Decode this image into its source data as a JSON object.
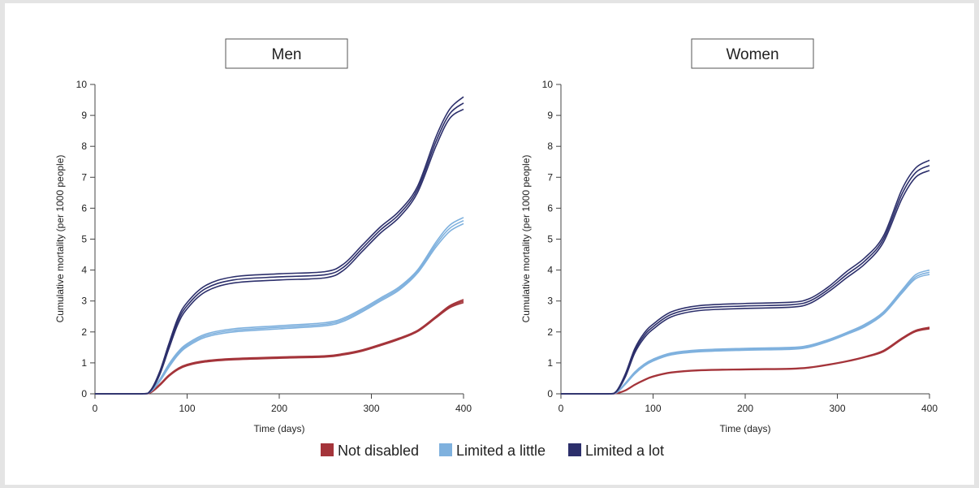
{
  "chart_data": [
    {
      "type": "line",
      "title": "Men",
      "xlabel": "Time (days)",
      "ylabel": "Cumulative mortality (per 1000 people)",
      "xlim": [
        0,
        400
      ],
      "ylim": [
        0,
        10
      ],
      "xticks": [
        0,
        100,
        200,
        300,
        400
      ],
      "yticks": [
        0,
        1,
        2,
        3,
        4,
        5,
        6,
        7,
        8,
        9,
        10
      ],
      "grid": false,
      "series": [
        {
          "name": "Not disabled",
          "color": "#a4343a",
          "x": [
            0,
            50,
            60,
            70,
            80,
            90,
            100,
            120,
            150,
            200,
            250,
            270,
            290,
            310,
            330,
            350,
            370,
            385,
            400
          ],
          "upper": [
            0,
            0,
            0.05,
            0.3,
            0.6,
            0.82,
            0.95,
            1.07,
            1.14,
            1.19,
            1.23,
            1.3,
            1.42,
            1.6,
            1.8,
            2.05,
            2.5,
            2.85,
            3.05
          ],
          "mid": [
            0,
            0,
            0.04,
            0.28,
            0.58,
            0.8,
            0.93,
            1.05,
            1.12,
            1.17,
            1.21,
            1.28,
            1.4,
            1.58,
            1.78,
            2.03,
            2.48,
            2.82,
            3.0
          ],
          "lower": [
            0,
            0,
            0.03,
            0.26,
            0.56,
            0.78,
            0.91,
            1.03,
            1.1,
            1.15,
            1.19,
            1.26,
            1.38,
            1.56,
            1.76,
            2.01,
            2.45,
            2.78,
            2.95
          ]
        },
        {
          "name": "Limited a little",
          "color": "#7fb1de",
          "x": [
            0,
            50,
            60,
            70,
            80,
            90,
            100,
            120,
            150,
            200,
            250,
            270,
            290,
            310,
            330,
            350,
            370,
            385,
            400
          ],
          "upper": [
            0,
            0,
            0.08,
            0.45,
            0.95,
            1.35,
            1.62,
            1.93,
            2.1,
            2.2,
            2.3,
            2.45,
            2.75,
            3.1,
            3.45,
            4.0,
            4.9,
            5.45,
            5.7
          ],
          "mid": [
            0,
            0,
            0.07,
            0.42,
            0.9,
            1.3,
            1.57,
            1.88,
            2.05,
            2.15,
            2.25,
            2.4,
            2.7,
            3.05,
            3.4,
            3.95,
            4.82,
            5.35,
            5.6
          ],
          "lower": [
            0,
            0,
            0.06,
            0.39,
            0.85,
            1.25,
            1.52,
            1.83,
            2.0,
            2.1,
            2.2,
            2.35,
            2.65,
            3.0,
            3.35,
            3.9,
            4.74,
            5.25,
            5.5
          ]
        },
        {
          "name": "Limited a lot",
          "color": "#2c2f6b",
          "x": [
            0,
            50,
            60,
            70,
            80,
            90,
            100,
            120,
            150,
            200,
            250,
            270,
            290,
            310,
            330,
            350,
            370,
            385,
            400
          ],
          "upper": [
            0,
            0,
            0.1,
            0.7,
            1.6,
            2.45,
            2.95,
            3.5,
            3.78,
            3.88,
            3.95,
            4.2,
            4.8,
            5.4,
            5.9,
            6.7,
            8.3,
            9.2,
            9.6
          ],
          "mid": [
            0,
            0,
            0.09,
            0.65,
            1.52,
            2.35,
            2.85,
            3.4,
            3.68,
            3.78,
            3.85,
            4.1,
            4.7,
            5.3,
            5.8,
            6.6,
            8.15,
            9.05,
            9.4
          ],
          "lower": [
            0,
            0,
            0.08,
            0.6,
            1.44,
            2.25,
            2.75,
            3.3,
            3.58,
            3.68,
            3.75,
            4.0,
            4.6,
            5.2,
            5.7,
            6.5,
            8.0,
            8.9,
            9.2
          ]
        }
      ]
    },
    {
      "type": "line",
      "title": "Women",
      "xlabel": "Time (days)",
      "ylabel": "Cumulative mortality (per 1000 people)",
      "xlim": [
        0,
        400
      ],
      "ylim": [
        0,
        10
      ],
      "xticks": [
        0,
        100,
        200,
        300,
        400
      ],
      "yticks": [
        0,
        1,
        2,
        3,
        4,
        5,
        6,
        7,
        8,
        9,
        10
      ],
      "grid": false,
      "series": [
        {
          "name": "Not disabled",
          "color": "#a4343a",
          "x": [
            0,
            50,
            60,
            70,
            80,
            90,
            100,
            120,
            150,
            200,
            250,
            270,
            290,
            310,
            330,
            350,
            370,
            385,
            400
          ],
          "upper": [
            0,
            0,
            0.02,
            0.12,
            0.3,
            0.45,
            0.57,
            0.7,
            0.77,
            0.8,
            0.82,
            0.86,
            0.95,
            1.06,
            1.2,
            1.4,
            1.8,
            2.05,
            2.15
          ],
          "mid": [
            0,
            0,
            0.02,
            0.11,
            0.29,
            0.44,
            0.56,
            0.69,
            0.76,
            0.79,
            0.81,
            0.85,
            0.94,
            1.05,
            1.19,
            1.38,
            1.78,
            2.03,
            2.12
          ],
          "lower": [
            0,
            0,
            0.01,
            0.1,
            0.28,
            0.43,
            0.55,
            0.68,
            0.75,
            0.78,
            0.8,
            0.84,
            0.93,
            1.04,
            1.18,
            1.36,
            1.76,
            2.01,
            2.1
          ]
        },
        {
          "name": "Limited a little",
          "color": "#7fb1de",
          "x": [
            0,
            50,
            60,
            70,
            80,
            90,
            100,
            120,
            150,
            200,
            250,
            270,
            290,
            310,
            330,
            350,
            370,
            385,
            400
          ],
          "upper": [
            0,
            0,
            0.05,
            0.35,
            0.7,
            0.95,
            1.12,
            1.32,
            1.42,
            1.47,
            1.5,
            1.57,
            1.75,
            1.98,
            2.25,
            2.65,
            3.35,
            3.85,
            4.0
          ],
          "mid": [
            0,
            0,
            0.04,
            0.33,
            0.67,
            0.92,
            1.09,
            1.29,
            1.39,
            1.44,
            1.47,
            1.54,
            1.72,
            1.95,
            2.21,
            2.61,
            3.3,
            3.78,
            3.93
          ],
          "lower": [
            0,
            0,
            0.03,
            0.31,
            0.64,
            0.89,
            1.06,
            1.26,
            1.36,
            1.41,
            1.44,
            1.51,
            1.69,
            1.92,
            2.17,
            2.57,
            3.25,
            3.72,
            3.86
          ]
        },
        {
          "name": "Limited a lot",
          "color": "#2c2f6b",
          "x": [
            0,
            50,
            60,
            70,
            80,
            90,
            100,
            120,
            150,
            200,
            250,
            270,
            290,
            310,
            330,
            350,
            370,
            385,
            400
          ],
          "upper": [
            0,
            0,
            0.08,
            0.65,
            1.45,
            1.95,
            2.25,
            2.65,
            2.85,
            2.92,
            2.96,
            3.08,
            3.45,
            3.95,
            4.4,
            5.1,
            6.6,
            7.3,
            7.55
          ],
          "mid": [
            0,
            0,
            0.07,
            0.6,
            1.38,
            1.87,
            2.17,
            2.57,
            2.77,
            2.84,
            2.88,
            3.0,
            3.37,
            3.85,
            4.3,
            5.0,
            6.45,
            7.15,
            7.38
          ],
          "lower": [
            0,
            0,
            0.06,
            0.55,
            1.31,
            1.79,
            2.09,
            2.49,
            2.69,
            2.76,
            2.8,
            2.92,
            3.29,
            3.75,
            4.2,
            4.9,
            6.3,
            7.0,
            7.22
          ]
        }
      ]
    }
  ],
  "legend": {
    "placement": "bottom-center",
    "items": [
      {
        "label": "Not disabled",
        "color": "#a4343a"
      },
      {
        "label": "Limited a little",
        "color": "#7fb1de"
      },
      {
        "label": "Limited a lot",
        "color": "#2c2f6b"
      }
    ]
  }
}
